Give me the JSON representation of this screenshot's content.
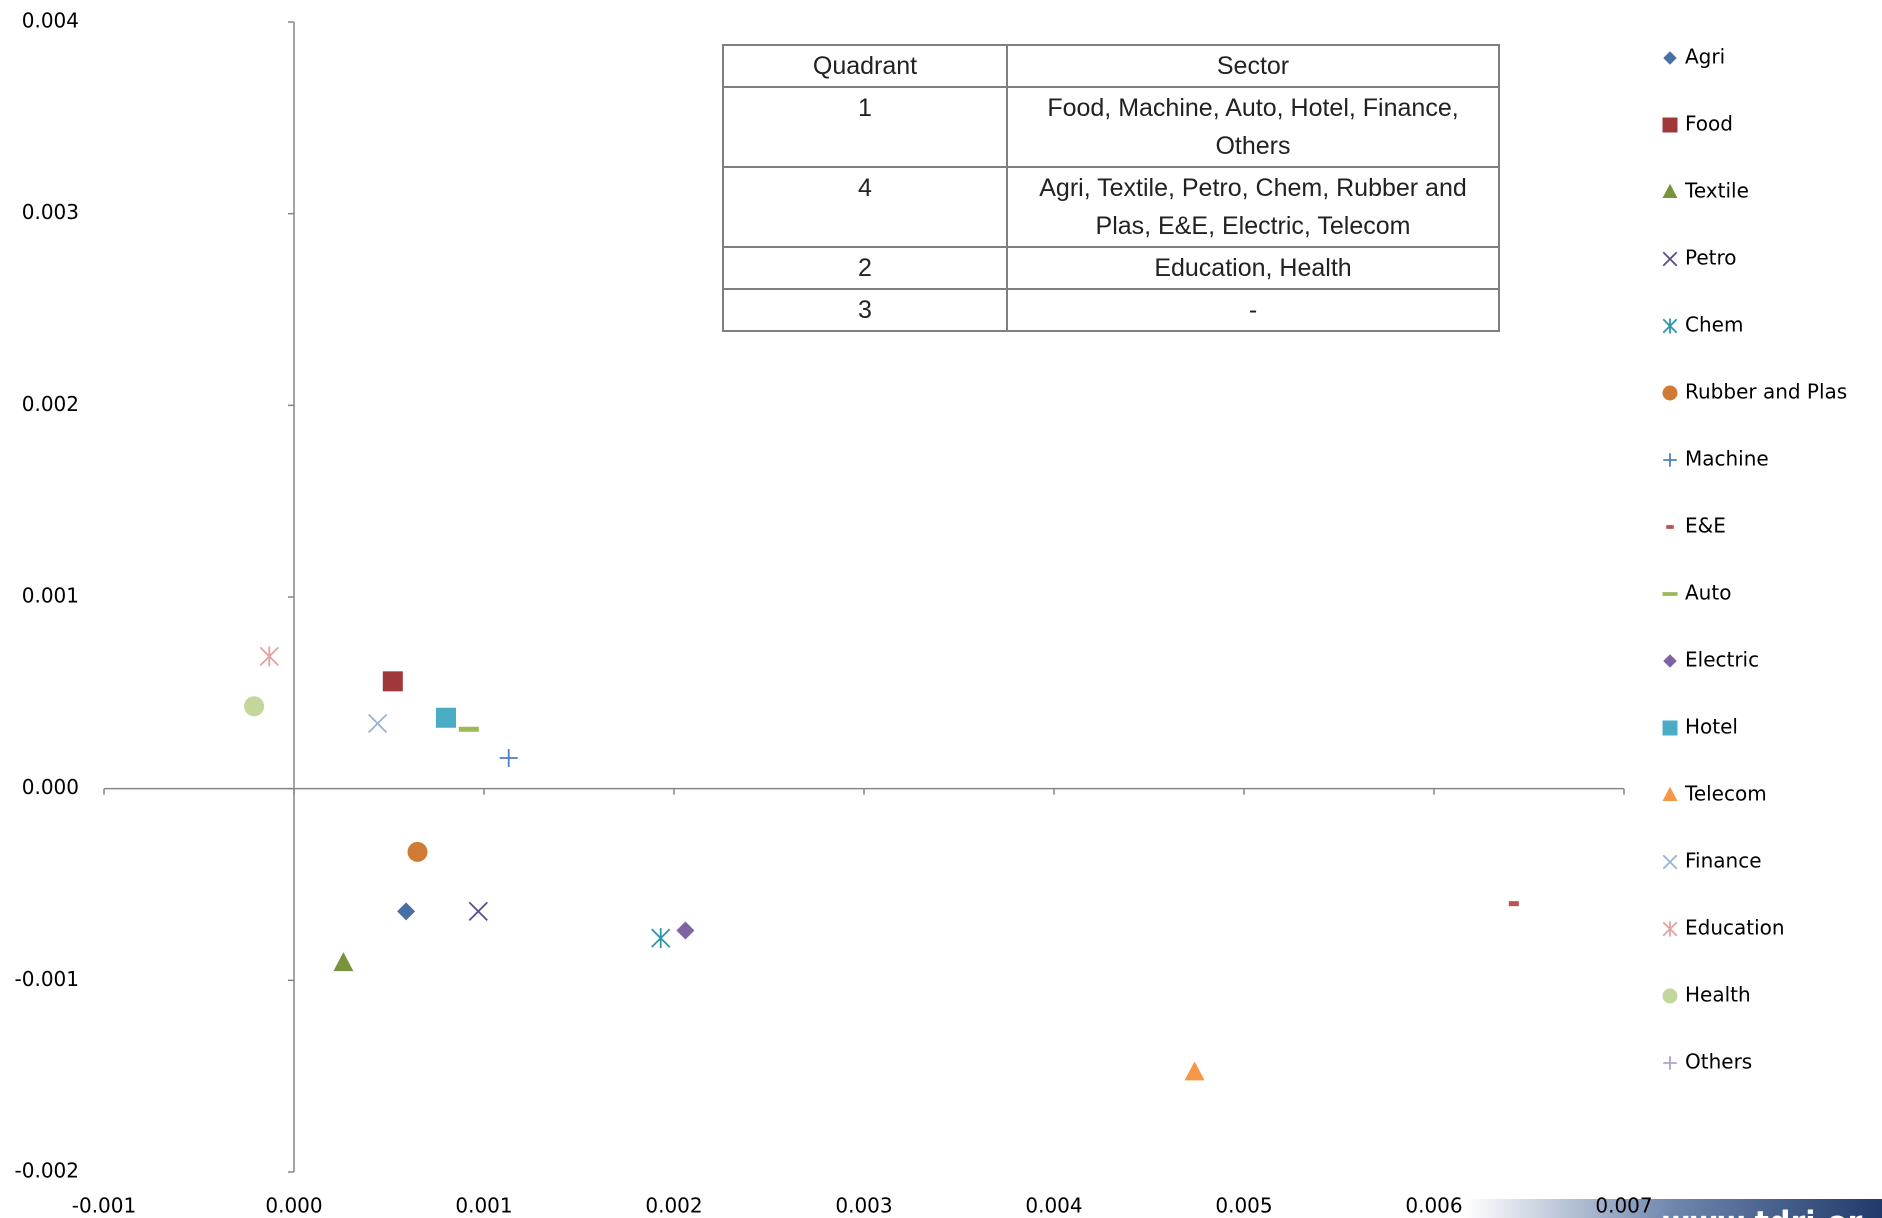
{
  "chart_data": {
    "type": "scatter",
    "xlim": [
      -0.001,
      0.007
    ],
    "ylim": [
      -0.002,
      0.004
    ],
    "xticks": [
      -0.001,
      {
        "value": 0,
        "label": "0.000"
      },
      0.001,
      0.002,
      0.003,
      0.004,
      0.005,
      0.006,
      0.007
    ],
    "yticks": [
      0.004,
      0.003,
      0.002,
      0.001,
      {
        "value": 0,
        "label": "0.000"
      },
      -0.001,
      -0.002
    ],
    "grid": false,
    "legend": "right",
    "series": [
      {
        "name": "Agri",
        "color": "#4a6fa5",
        "marker": "diamond",
        "x": [
          0.00059
        ],
        "values": [
          -0.00064
        ]
      },
      {
        "name": "Food",
        "color": "#a0373b",
        "marker": "square",
        "x": [
          0.00052
        ],
        "values": [
          0.00056
        ]
      },
      {
        "name": "Textile",
        "color": "#77933c",
        "marker": "triangle",
        "x": [
          0.00026
        ],
        "values": [
          -0.00091
        ]
      },
      {
        "name": "Petro",
        "color": "#5f4a8b",
        "marker": "x",
        "x": [
          0.00097
        ],
        "values": [
          -0.00064
        ]
      },
      {
        "name": "Chem",
        "color": "#2c97a8",
        "marker": "asterisk",
        "x": [
          0.00193
        ],
        "values": [
          -0.00078
        ]
      },
      {
        "name": "Rubber and Plas",
        "color": "#d07b35",
        "marker": "circle",
        "x": [
          0.00065
        ],
        "values": [
          -0.00033
        ]
      },
      {
        "name": "Machine",
        "color": "#4f7fc4",
        "marker": "plus",
        "x": [
          0.00113
        ],
        "values": [
          0.00016
        ]
      },
      {
        "name": "E&E",
        "color": "#c0504d",
        "marker": "dash",
        "x": [
          0.00642
        ],
        "values": [
          -0.0006
        ]
      },
      {
        "name": "Auto",
        "color": "#9bbb59",
        "marker": "longdash",
        "x": [
          0.00092
        ],
        "values": [
          0.00031
        ]
      },
      {
        "name": "Electric",
        "color": "#8064a2",
        "marker": "diamond",
        "x": [
          0.00206
        ],
        "values": [
          -0.00074
        ]
      },
      {
        "name": "Hotel",
        "color": "#4bacc6",
        "marker": "square",
        "x": [
          0.0008
        ],
        "values": [
          0.00037
        ]
      },
      {
        "name": "Telecom",
        "color": "#f79646",
        "marker": "triangle",
        "x": [
          0.00474
        ],
        "values": [
          -0.00148
        ]
      },
      {
        "name": "Finance",
        "color": "#95b3d7",
        "marker": "x",
        "x": [
          0.00044
        ],
        "values": [
          0.00034
        ]
      },
      {
        "name": "Education",
        "color": "#e6a09e",
        "marker": "asterisk",
        "x": [
          -0.00013
        ],
        "values": [
          0.00069
        ]
      },
      {
        "name": "Health",
        "color": "#c3d69b",
        "marker": "circle",
        "x": [
          -0.00021
        ],
        "values": [
          0.00043
        ]
      },
      {
        "name": "Others",
        "color": "#b3a2c7",
        "marker": "plus",
        "x": [],
        "values": []
      }
    ]
  },
  "table": {
    "header": [
      "Quadrant",
      "Sector"
    ],
    "rows": [
      [
        "1",
        "Food, Machine, Auto, Hotel, Finance, Others"
      ],
      [
        "4",
        "Agri, Textile, Petro, Chem, Rubber and Plas, E&E, Electric, Telecom"
      ],
      [
        "2",
        "Education, Health"
      ],
      [
        "3",
        "-"
      ]
    ]
  },
  "watermark": "www.tdri.or"
}
